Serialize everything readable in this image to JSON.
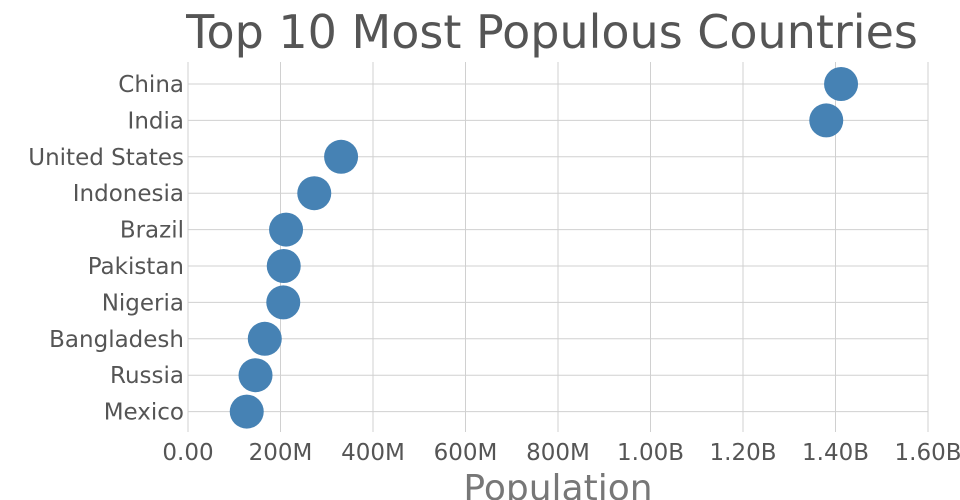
{
  "chart_data": {
    "type": "scatter",
    "title": "Top 10 Most Populous Countries",
    "xlabel": "Population",
    "ylabel": "",
    "xlim": [
      0,
      1600000000
    ],
    "x_ticks": [
      0,
      200000000,
      400000000,
      600000000,
      800000000,
      1000000000,
      1200000000,
      1400000000,
      1600000000
    ],
    "x_tick_labels": [
      "0.00",
      "200M",
      "400M",
      "600M",
      "800M",
      "1.00B",
      "1.20B",
      "1.40B",
      "1.60B"
    ],
    "categories": [
      "China",
      "India",
      "United States",
      "Indonesia",
      "Brazil",
      "Pakistan",
      "Nigeria",
      "Bangladesh",
      "Russia",
      "Mexico"
    ],
    "values": [
      1412000000,
      1380000000,
      331000000,
      273000000,
      212000000,
      207000000,
      206000000,
      166000000,
      146000000,
      127000000
    ],
    "grid": true,
    "marker_color": "#4682b4"
  }
}
